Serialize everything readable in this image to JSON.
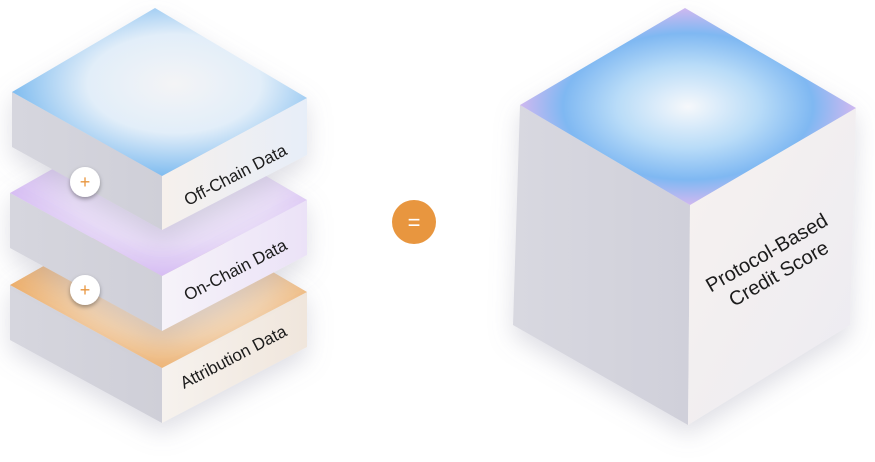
{
  "layers": [
    {
      "label": "Off-Chain Data",
      "accent": "#5aa9ec"
    },
    {
      "label": "On-Chain Data",
      "accent": "#c9a6f0"
    },
    {
      "label": "Attribution Data",
      "accent": "#e9973f"
    }
  ],
  "plus_symbol": "+",
  "equals_symbol": "=",
  "result": {
    "line1": "Protocol-Based",
    "line2": "Credit Score",
    "accent": "#7fb8f2"
  },
  "operator_color": "#e8963f"
}
